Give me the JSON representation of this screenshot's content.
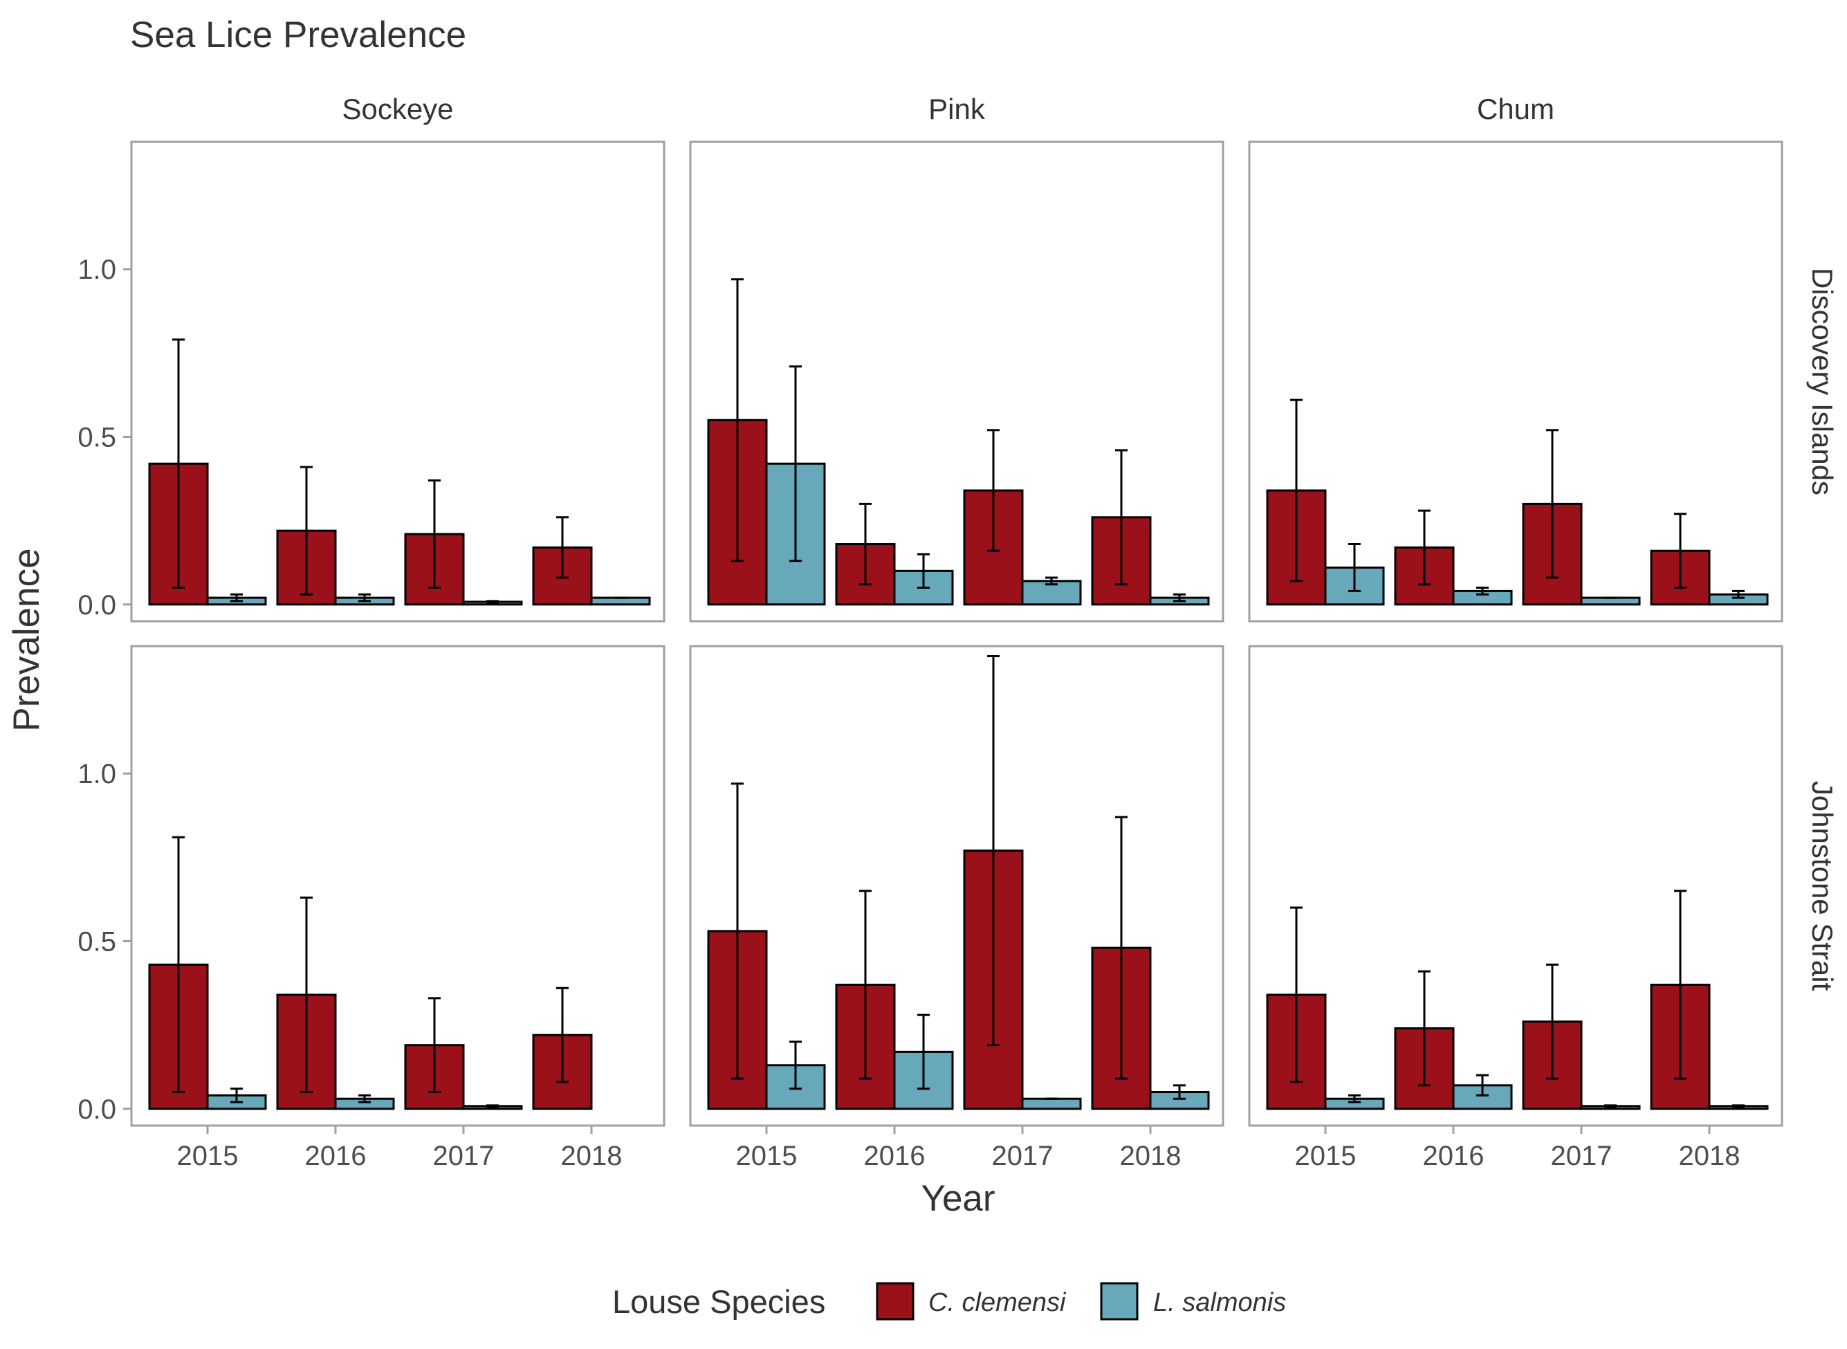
{
  "chart_data": {
    "type": "bar",
    "title": "Sea Lice Prevalence",
    "xlabel": "Year",
    "ylabel": "Prevalence",
    "ylim": [
      -0.05,
      1.38
    ],
    "yticks": [
      0.0,
      0.5,
      1.0
    ],
    "ytick_labels": [
      "0.0",
      "0.5",
      "1.0"
    ],
    "categories": [
      "2015",
      "2016",
      "2017",
      "2018"
    ],
    "columns": [
      "Sockeye",
      "Pink",
      "Chum"
    ],
    "rows": [
      "Discovery Islands",
      "Johnstone Strait"
    ],
    "grid": false,
    "legend": {
      "title": "Louse Species",
      "position": "bottom",
      "entries": [
        {
          "label": "C. clemensi",
          "color": "#9b1119"
        },
        {
          "label": "L. salmonis",
          "color": "#67a9bb"
        }
      ]
    },
    "panels": [
      {
        "column": "Sockeye",
        "row": "Discovery Islands",
        "series": [
          {
            "name": "C. clemensi",
            "values": [
              0.42,
              0.22,
              0.21,
              0.17
            ],
            "lower": [
              0.05,
              0.03,
              0.05,
              0.08
            ],
            "upper": [
              0.79,
              0.41,
              0.37,
              0.26
            ]
          },
          {
            "name": "L. salmonis",
            "values": [
              0.02,
              0.02,
              0.008,
              0.02
            ],
            "lower": [
              0.01,
              0.01,
              0.005,
              0.02
            ],
            "upper": [
              0.03,
              0.03,
              0.01,
              0.02
            ]
          }
        ]
      },
      {
        "column": "Pink",
        "row": "Discovery Islands",
        "series": [
          {
            "name": "C. clemensi",
            "values": [
              0.55,
              0.18,
              0.34,
              0.26
            ],
            "lower": [
              0.13,
              0.06,
              0.16,
              0.06
            ],
            "upper": [
              0.97,
              0.3,
              0.52,
              0.46
            ]
          },
          {
            "name": "L. salmonis",
            "values": [
              0.42,
              0.1,
              0.07,
              0.02
            ],
            "lower": [
              0.13,
              0.05,
              0.06,
              0.01
            ],
            "upper": [
              0.71,
              0.15,
              0.08,
              0.03
            ]
          }
        ]
      },
      {
        "column": "Chum",
        "row": "Discovery Islands",
        "series": [
          {
            "name": "C. clemensi",
            "values": [
              0.34,
              0.17,
              0.3,
              0.16
            ],
            "lower": [
              0.07,
              0.06,
              0.08,
              0.05
            ],
            "upper": [
              0.61,
              0.28,
              0.52,
              0.27
            ]
          },
          {
            "name": "L. salmonis",
            "values": [
              0.11,
              0.04,
              0.02,
              0.03
            ],
            "lower": [
              0.04,
              0.03,
              0.02,
              0.02
            ],
            "upper": [
              0.18,
              0.05,
              0.02,
              0.04
            ]
          }
        ]
      },
      {
        "column": "Sockeye",
        "row": "Johnstone Strait",
        "series": [
          {
            "name": "C. clemensi",
            "values": [
              0.43,
              0.34,
              0.19,
              0.22
            ],
            "lower": [
              0.05,
              0.05,
              0.05,
              0.08
            ],
            "upper": [
              0.81,
              0.63,
              0.33,
              0.36
            ]
          },
          {
            "name": "L. salmonis",
            "values": [
              0.04,
              0.03,
              0.008,
              0.0
            ],
            "lower": [
              0.02,
              0.02,
              0.005,
              0.0
            ],
            "upper": [
              0.06,
              0.04,
              0.01,
              0.0
            ]
          }
        ]
      },
      {
        "column": "Pink",
        "row": "Johnstone Strait",
        "series": [
          {
            "name": "C. clemensi",
            "values": [
              0.53,
              0.37,
              0.77,
              0.48
            ],
            "lower": [
              0.09,
              0.09,
              0.19,
              0.09
            ],
            "upper": [
              0.97,
              0.65,
              1.35,
              0.87
            ]
          },
          {
            "name": "L. salmonis",
            "values": [
              0.13,
              0.17,
              0.03,
              0.05
            ],
            "lower": [
              0.06,
              0.06,
              0.03,
              0.03
            ],
            "upper": [
              0.2,
              0.28,
              0.03,
              0.07
            ]
          }
        ]
      },
      {
        "column": "Chum",
        "row": "Johnstone Strait",
        "series": [
          {
            "name": "C. clemensi",
            "values": [
              0.34,
              0.24,
              0.26,
              0.37
            ],
            "lower": [
              0.08,
              0.07,
              0.09,
              0.09
            ],
            "upper": [
              0.6,
              0.41,
              0.43,
              0.65
            ]
          },
          {
            "name": "L. salmonis",
            "values": [
              0.03,
              0.07,
              0.008,
              0.008
            ],
            "lower": [
              0.02,
              0.04,
              0.005,
              0.005
            ],
            "upper": [
              0.04,
              0.1,
              0.01,
              0.01
            ]
          }
        ]
      }
    ]
  }
}
